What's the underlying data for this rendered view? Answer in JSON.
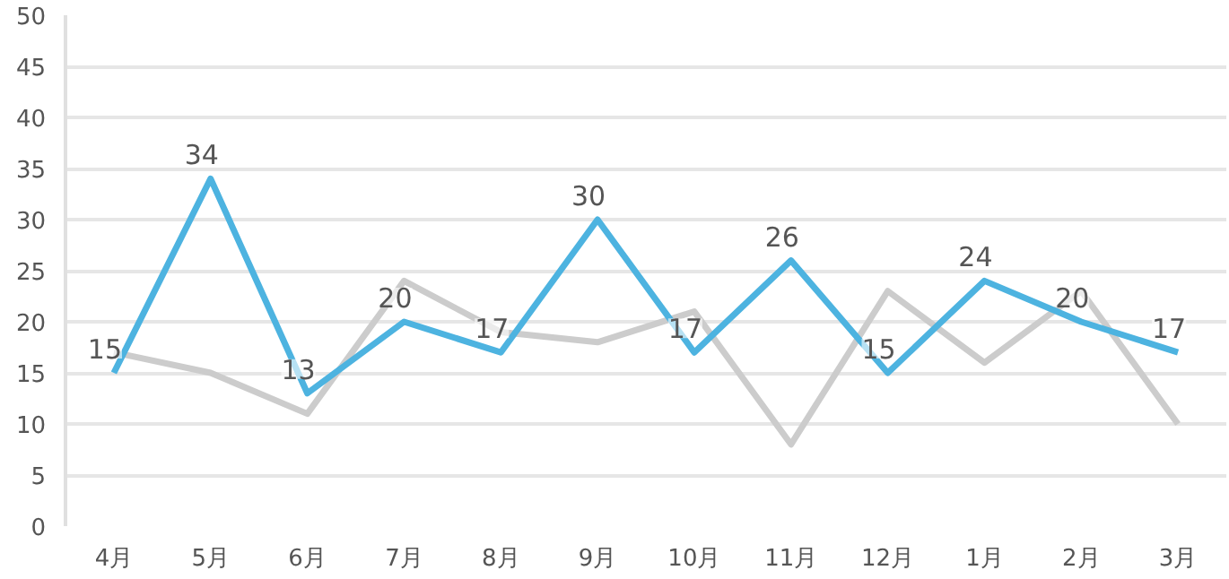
{
  "chart_data": {
    "type": "line",
    "categories": [
      "4月",
      "5月",
      "6月",
      "7月",
      "8月",
      "9月",
      "10月",
      "11月",
      "12月",
      "1月",
      "2月",
      "3月"
    ],
    "series": [
      {
        "color": "#cccccc",
        "values": [
          17,
          15,
          11,
          24,
          19,
          18,
          21,
          8,
          23,
          16,
          23,
          10
        ]
      },
      {
        "color": "#4db3e0",
        "values": [
          15,
          34,
          13,
          20,
          17,
          30,
          17,
          26,
          15,
          24,
          20,
          17
        ],
        "value_labels": [
          "15",
          "34",
          "13",
          "20",
          "17",
          "30",
          "17",
          "26",
          "15",
          "24",
          "20",
          "17"
        ]
      }
    ],
    "ylim": [
      0,
      50
    ],
    "yticks": [
      0,
      5,
      10,
      15,
      20,
      25,
      30,
      35,
      40,
      45,
      50
    ],
    "grid": "y",
    "marker": "none",
    "line_style": "solid"
  }
}
